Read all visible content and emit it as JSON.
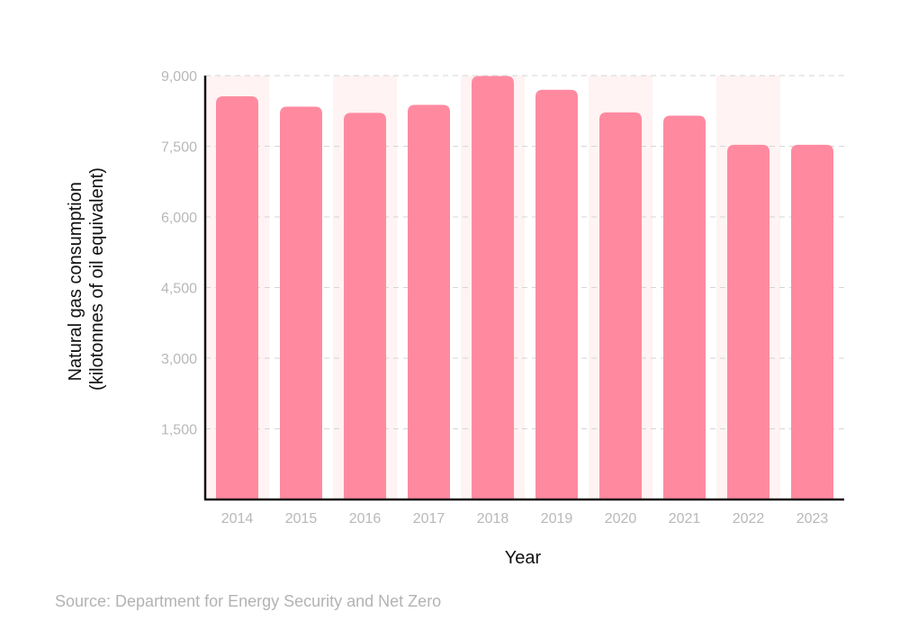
{
  "chart_data": {
    "type": "bar",
    "categories": [
      "2014",
      "2015",
      "2016",
      "2017",
      "2018",
      "2019",
      "2020",
      "2021",
      "2022",
      "2023"
    ],
    "values": [
      8560,
      8340,
      8210,
      8380,
      8990,
      8700,
      8220,
      8150,
      7530,
      7530
    ],
    "title": "",
    "xlabel": "Year",
    "ylabel_lines": [
      "Natural gas consumption",
      "(kilotonnes of oil equivalent)"
    ],
    "ylim": [
      0,
      9000
    ],
    "yticks": [
      1500,
      3000,
      4500,
      6000,
      7500,
      9000
    ],
    "ytick_labels": [
      "1,500",
      "3,000",
      "4,500",
      "6,000",
      "7,500",
      "9,000"
    ],
    "grid": "horizontal dashed",
    "legend": "none",
    "colors": {
      "bar": "#ff8aa0",
      "band": "#fff3f3",
      "grid": "#d6d6d6",
      "axis": "#111111",
      "tick_text": "#b8b8b8"
    }
  },
  "source": "Source: Department for Energy Security and Net Zero"
}
